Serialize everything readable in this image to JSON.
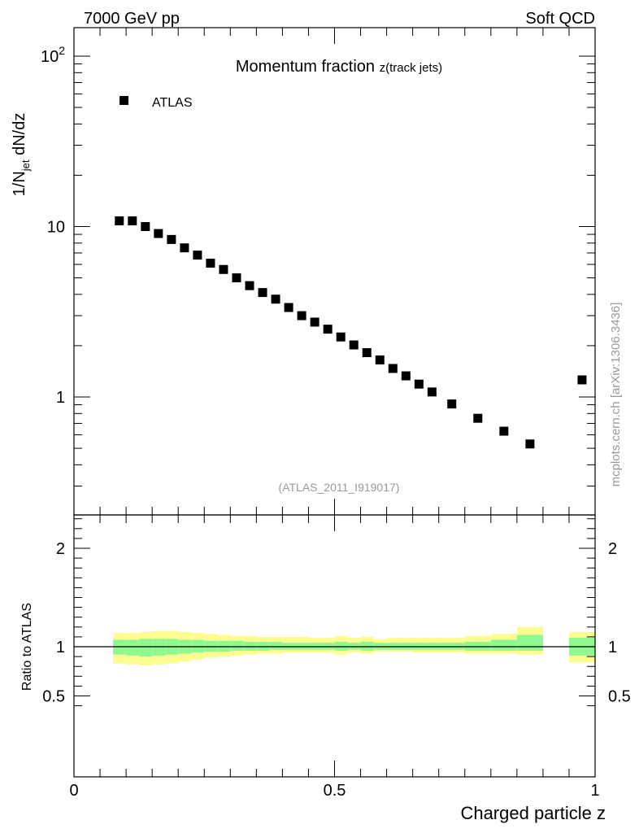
{
  "header": {
    "left": "7000 GeV pp",
    "right": "Soft QCD"
  },
  "side_label": "mcplots.cern.ch [arXiv:1306.3436]",
  "chart_data": [
    {
      "type": "scatter",
      "title": "Momentum fraction ",
      "title_sub": "z(track jets)",
      "ylabel_main": "1/N",
      "ylabel_sub": "jet",
      "ylabel_tail": " dN/dz",
      "xlabel": "Charged particle z",
      "yscale": "log",
      "xlim": [
        0,
        1.0
      ],
      "ylim": [
        0.25,
        150
      ],
      "yticks": [
        {
          "v": 1,
          "label": "1"
        },
        {
          "v": 10,
          "label": "10"
        },
        {
          "v": 100,
          "label": "10",
          "sup": "2"
        }
      ],
      "legend": "top-left",
      "annotation": "(ATLAS_2011_I919017)",
      "series": [
        {
          "name": "ATLAS",
          "marker": "square",
          "color": "#000000",
          "points": [
            [
              0.087,
              10.8
            ],
            [
              0.112,
              10.8
            ],
            [
              0.137,
              10.0
            ],
            [
              0.162,
              9.1
            ],
            [
              0.187,
              8.4
            ],
            [
              0.212,
              7.5
            ],
            [
              0.237,
              6.8
            ],
            [
              0.262,
              6.1
            ],
            [
              0.287,
              5.6
            ],
            [
              0.312,
              5.0
            ],
            [
              0.337,
              4.5
            ],
            [
              0.362,
              4.1
            ],
            [
              0.387,
              3.75
            ],
            [
              0.412,
              3.35
            ],
            [
              0.437,
              3.0
            ],
            [
              0.462,
              2.75
            ],
            [
              0.487,
              2.5
            ],
            [
              0.512,
              2.25
            ],
            [
              0.537,
              2.02
            ],
            [
              0.562,
              1.82
            ],
            [
              0.587,
              1.65
            ],
            [
              0.612,
              1.47
            ],
            [
              0.637,
              1.33
            ],
            [
              0.662,
              1.19
            ],
            [
              0.687,
              1.07
            ],
            [
              0.725,
              0.91
            ],
            [
              0.775,
              0.75
            ],
            [
              0.825,
              0.63
            ],
            [
              0.875,
              0.53
            ],
            [
              0.975,
              1.26
            ]
          ]
        }
      ]
    },
    {
      "type": "area",
      "ylabel": "Ratio to ATLAS",
      "xlabel": "Charged particle z",
      "xlim": [
        0,
        1.0
      ],
      "ylim": [
        0.35,
        2.35
      ],
      "yticks": [
        {
          "v": 0.5,
          "label": "0.5"
        },
        {
          "v": 1,
          "label": "1"
        },
        {
          "v": 2,
          "label": "2"
        }
      ],
      "xticks": [
        {
          "v": 0,
          "label": "0"
        },
        {
          "v": 0.5,
          "label": "0.5"
        },
        {
          "v": 1,
          "label": "1"
        }
      ],
      "reference_line": 1.0,
      "band_colors": {
        "inner": "#90f890",
        "outer": "#fcfc90"
      },
      "bands": [
        {
          "x0": 0.075,
          "x1": 0.1,
          "inner": [
            0.92,
            1.07
          ],
          "outer": [
            0.83,
            1.14
          ]
        },
        {
          "x0": 0.1,
          "x1": 0.125,
          "inner": [
            0.91,
            1.07
          ],
          "outer": [
            0.82,
            1.14
          ]
        },
        {
          "x0": 0.125,
          "x1": 0.15,
          "inner": [
            0.9,
            1.08
          ],
          "outer": [
            0.81,
            1.15
          ]
        },
        {
          "x0": 0.15,
          "x1": 0.175,
          "inner": [
            0.91,
            1.08
          ],
          "outer": [
            0.82,
            1.16
          ]
        },
        {
          "x0": 0.175,
          "x1": 0.2,
          "inner": [
            0.92,
            1.08
          ],
          "outer": [
            0.83,
            1.16
          ]
        },
        {
          "x0": 0.2,
          "x1": 0.225,
          "inner": [
            0.93,
            1.07
          ],
          "outer": [
            0.85,
            1.15
          ]
        },
        {
          "x0": 0.225,
          "x1": 0.25,
          "inner": [
            0.94,
            1.07
          ],
          "outer": [
            0.87,
            1.14
          ]
        },
        {
          "x0": 0.25,
          "x1": 0.275,
          "inner": [
            0.95,
            1.06
          ],
          "outer": [
            0.89,
            1.13
          ]
        },
        {
          "x0": 0.275,
          "x1": 0.3,
          "inner": [
            0.95,
            1.06
          ],
          "outer": [
            0.9,
            1.12
          ]
        },
        {
          "x0": 0.3,
          "x1": 0.325,
          "inner": [
            0.96,
            1.06
          ],
          "outer": [
            0.91,
            1.11
          ]
        },
        {
          "x0": 0.325,
          "x1": 0.35,
          "inner": [
            0.96,
            1.05
          ],
          "outer": [
            0.92,
            1.11
          ]
        },
        {
          "x0": 0.35,
          "x1": 0.375,
          "inner": [
            0.96,
            1.05
          ],
          "outer": [
            0.93,
            1.1
          ]
        },
        {
          "x0": 0.375,
          "x1": 0.4,
          "inner": [
            0.97,
            1.05
          ],
          "outer": [
            0.93,
            1.1
          ]
        },
        {
          "x0": 0.4,
          "x1": 0.425,
          "inner": [
            0.97,
            1.04
          ],
          "outer": [
            0.94,
            1.1
          ]
        },
        {
          "x0": 0.425,
          "x1": 0.45,
          "inner": [
            0.97,
            1.04
          ],
          "outer": [
            0.94,
            1.1
          ]
        },
        {
          "x0": 0.45,
          "x1": 0.475,
          "inner": [
            0.97,
            1.04
          ],
          "outer": [
            0.94,
            1.09
          ]
        },
        {
          "x0": 0.475,
          "x1": 0.5,
          "inner": [
            0.97,
            1.04
          ],
          "outer": [
            0.94,
            1.09
          ]
        },
        {
          "x0": 0.5,
          "x1": 0.525,
          "inner": [
            0.96,
            1.05
          ],
          "outer": [
            0.92,
            1.11
          ]
        },
        {
          "x0": 0.525,
          "x1": 0.55,
          "inner": [
            0.97,
            1.04
          ],
          "outer": [
            0.94,
            1.09
          ]
        },
        {
          "x0": 0.55,
          "x1": 0.575,
          "inner": [
            0.96,
            1.05
          ],
          "outer": [
            0.93,
            1.1
          ]
        },
        {
          "x0": 0.575,
          "x1": 0.6,
          "inner": [
            0.97,
            1.04
          ],
          "outer": [
            0.95,
            1.08
          ]
        },
        {
          "x0": 0.6,
          "x1": 0.625,
          "inner": [
            0.97,
            1.04
          ],
          "outer": [
            0.95,
            1.09
          ]
        },
        {
          "x0": 0.625,
          "x1": 0.65,
          "inner": [
            0.97,
            1.04
          ],
          "outer": [
            0.95,
            1.09
          ]
        },
        {
          "x0": 0.65,
          "x1": 0.675,
          "inner": [
            0.97,
            1.04
          ],
          "outer": [
            0.94,
            1.09
          ]
        },
        {
          "x0": 0.675,
          "x1": 0.7,
          "inner": [
            0.97,
            1.04
          ],
          "outer": [
            0.94,
            1.09
          ]
        },
        {
          "x0": 0.7,
          "x1": 0.75,
          "inner": [
            0.97,
            1.04
          ],
          "outer": [
            0.94,
            1.09
          ]
        },
        {
          "x0": 0.75,
          "x1": 0.8,
          "inner": [
            0.96,
            1.05
          ],
          "outer": [
            0.93,
            1.11
          ]
        },
        {
          "x0": 0.8,
          "x1": 0.85,
          "inner": [
            0.96,
            1.07
          ],
          "outer": [
            0.93,
            1.13
          ]
        },
        {
          "x0": 0.85,
          "x1": 0.9,
          "inner": [
            0.96,
            1.12
          ],
          "outer": [
            0.92,
            1.2
          ]
        },
        {
          "x0": 0.95,
          "x1": 1.0,
          "inner": [
            0.91,
            1.09
          ],
          "outer": [
            0.84,
            1.15
          ]
        }
      ]
    }
  ]
}
